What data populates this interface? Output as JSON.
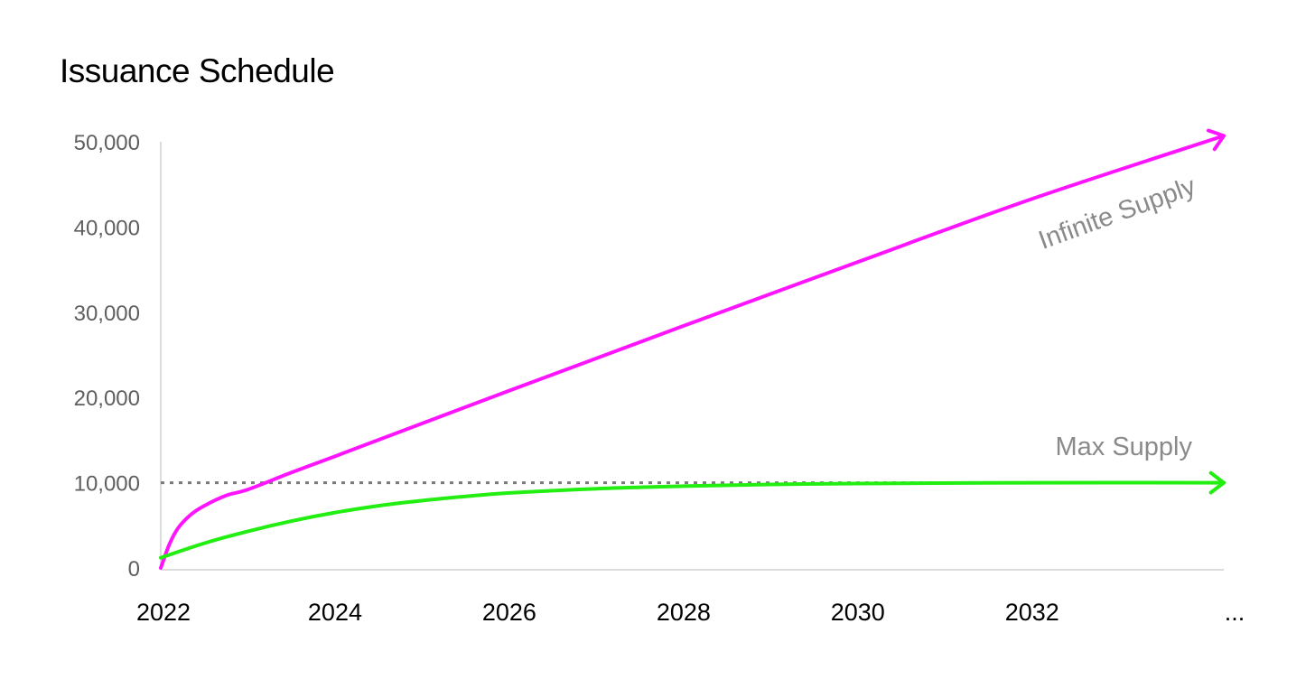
{
  "chart_data": {
    "type": "line",
    "title": "Issuance Schedule",
    "xlabel": "",
    "ylabel": "",
    "ylim": [
      0,
      50000
    ],
    "xlim": [
      2022,
      2034.2
    ],
    "y_ticks": [
      "0",
      "10,000",
      "20,000",
      "30,000",
      "40,000",
      "50,000"
    ],
    "x_ticks": [
      "2022",
      "2024",
      "2026",
      "2028",
      "2030",
      "2032",
      "..."
    ],
    "grid": false,
    "reference_line": {
      "value": 10000,
      "style": "dotted",
      "color": "#7a7a7a"
    },
    "series": [
      {
        "name": "Infinite Supply",
        "color": "#ff14ff",
        "x": [
          2022,
          2022.1,
          2022.2,
          2022.35,
          2022.5,
          2022.75,
          2023,
          2023.5,
          2024,
          2026,
          2028,
          2030,
          2032,
          2034.2
        ],
        "y": [
          0,
          2800,
          4700,
          6300,
          7300,
          8500,
          9200,
          11200,
          13100,
          20800,
          28400,
          35900,
          43300,
          50700
        ]
      },
      {
        "name": "Max Supply",
        "color": "#22ee11",
        "x": [
          2022,
          2022.5,
          2023,
          2023.5,
          2024,
          2024.5,
          2025,
          2025.5,
          2026,
          2027,
          2028,
          2029,
          2030,
          2032,
          2034.2
        ],
        "y": [
          1200,
          2900,
          4300,
          5500,
          6500,
          7300,
          7900,
          8400,
          8800,
          9300,
          9600,
          9800,
          9900,
          10000,
          10000
        ]
      }
    ],
    "annotations": [
      {
        "text": "Infinite Supply",
        "series": "Infinite Supply"
      },
      {
        "text": "Max Supply",
        "series": "Max Supply"
      }
    ]
  }
}
